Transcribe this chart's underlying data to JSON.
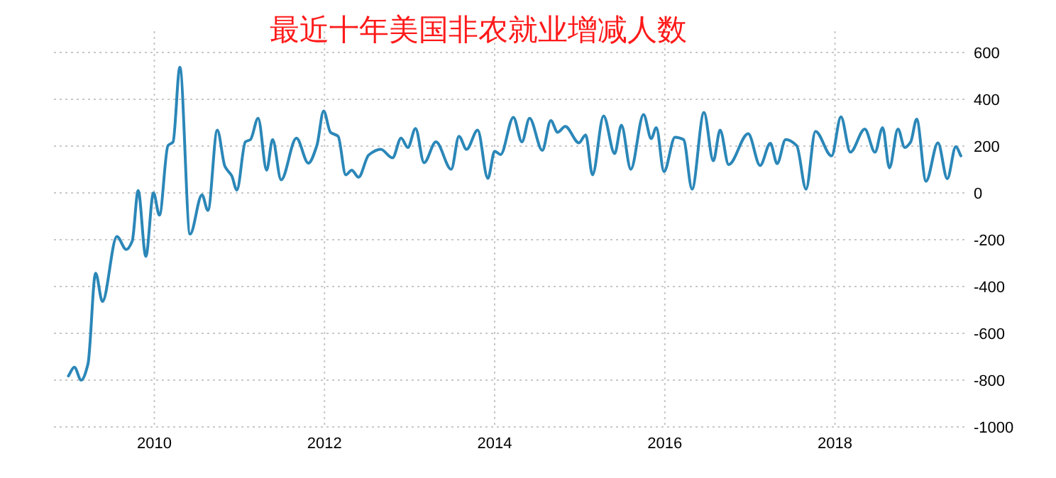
{
  "chart_data": {
    "type": "line",
    "title": "最近十年美国非农就业增减人数",
    "x": [
      2008.99,
      2009.06,
      2009.14,
      2009.22,
      2009.31,
      2009.39,
      2009.56,
      2009.67,
      2009.74,
      2009.81,
      2009.9,
      2009.99,
      2010.06,
      2010.16,
      2010.22,
      2010.3,
      2010.42,
      2010.56,
      2010.63,
      2010.74,
      2010.83,
      2010.91,
      2010.97,
      2011.07,
      2011.13,
      2011.22,
      2011.32,
      2011.39,
      2011.49,
      2011.67,
      2011.81,
      2011.91,
      2011.99,
      2012.07,
      2012.16,
      2012.25,
      2012.32,
      2012.4,
      2012.52,
      2012.66,
      2012.8,
      2012.9,
      2012.98,
      2013.07,
      2013.17,
      2013.31,
      2013.49,
      2013.58,
      2013.67,
      2013.8,
      2013.92,
      2014.0,
      2014.07,
      2014.22,
      2014.32,
      2014.41,
      2014.56,
      2014.66,
      2014.74,
      2014.83,
      2014.99,
      2015.07,
      2015.15,
      2015.28,
      2015.41,
      2015.49,
      2015.6,
      2015.75,
      2015.84,
      2015.9,
      2015.99,
      2016.12,
      2016.22,
      2016.32,
      2016.46,
      2016.57,
      2016.65,
      2016.75,
      2016.98,
      2017.12,
      2017.24,
      2017.32,
      2017.42,
      2017.55,
      2017.66,
      2017.77,
      2017.96,
      2018.07,
      2018.18,
      2018.35,
      2018.47,
      2018.56,
      2018.64,
      2018.74,
      2018.82,
      2018.89,
      2018.96,
      2019.07,
      2019.21,
      2019.32,
      2019.42,
      2019.48
    ],
    "series": [
      {
        "color": "#2b87b8",
        "values": [
          -782,
          -745,
          -800,
          -731,
          -343,
          -464,
          -186,
          -242,
          -206,
          10,
          -271,
          0,
          -95,
          202,
          218,
          537,
          -176,
          -8,
          -75,
          268,
          113,
          73,
          12,
          218,
          228,
          319,
          97,
          228,
          56,
          234,
          127,
          202,
          350,
          259,
          242,
          77,
          97,
          67,
          162,
          186,
          150,
          234,
          194,
          275,
          129,
          218,
          101,
          242,
          186,
          268,
          62,
          178,
          164,
          323,
          218,
          319,
          182,
          309,
          259,
          284,
          214,
          248,
          77,
          329,
          168,
          289,
          101,
          335,
          232,
          279,
          91,
          238,
          228,
          16,
          344,
          137,
          268,
          121,
          253,
          117,
          212,
          125,
          228,
          202,
          16,
          263,
          158,
          325,
          174,
          273,
          174,
          279,
          107,
          273,
          194,
          218,
          315,
          50,
          214,
          61,
          198,
          158
        ]
      }
    ],
    "xlim": [
      2008.82,
      2019.53
    ],
    "ylim": [
      -1000,
      600
    ],
    "xticks": [
      2010,
      2012,
      2014,
      2016,
      2018
    ],
    "yticks": [
      -1000,
      -800,
      -600,
      -400,
      -200,
      0,
      200,
      400,
      600
    ],
    "grid": true,
    "marker": "none",
    "line_style": "solid"
  }
}
